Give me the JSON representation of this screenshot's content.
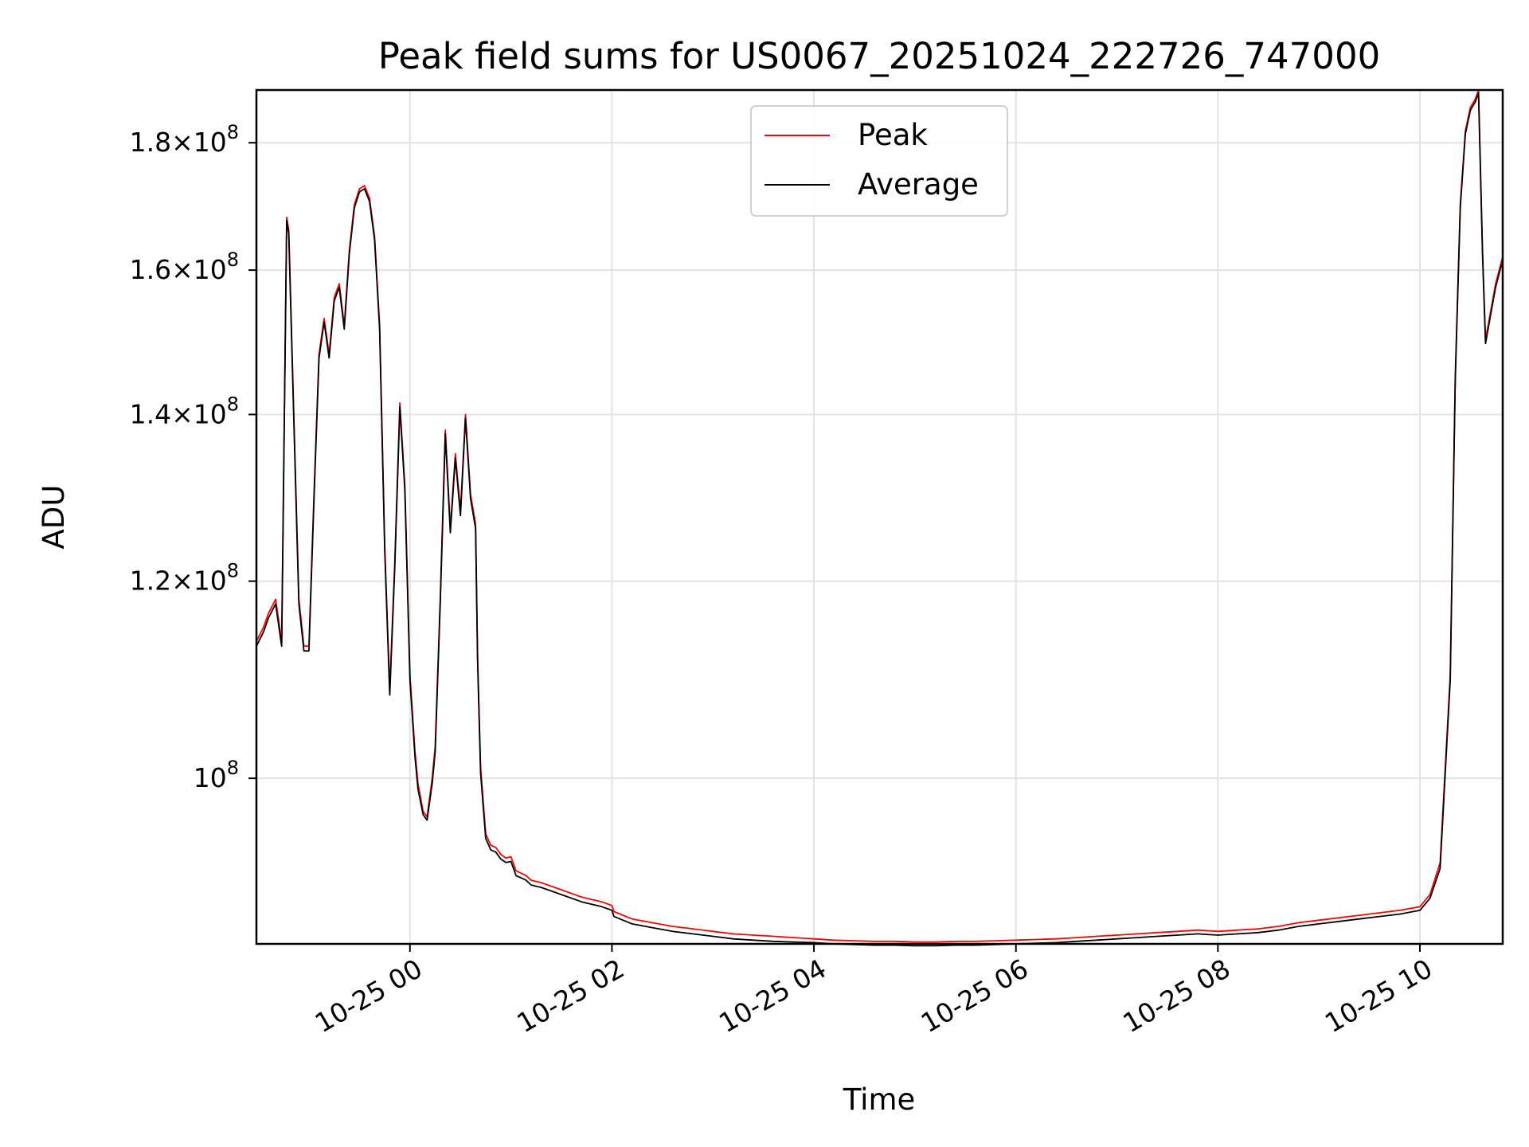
{
  "chart_data": {
    "type": "line",
    "title": "Peak field sums for US0067_20251024_222726_747000",
    "xlabel": "Time",
    "ylabel": "ADU",
    "y_scale": "log",
    "grid": true,
    "legend_position": "upper-center",
    "xlim_hours": [
      -1.52,
      10.82
    ],
    "ylim": [
      85800000.0,
      189000000.0
    ],
    "x_ticks": [
      {
        "hours": 0,
        "label": "10-25 00"
      },
      {
        "hours": 2,
        "label": "10-25 02"
      },
      {
        "hours": 4,
        "label": "10-25 04"
      },
      {
        "hours": 6,
        "label": "10-25 06"
      },
      {
        "hours": 8,
        "label": "10-25 08"
      },
      {
        "hours": 10,
        "label": "10-25 10"
      }
    ],
    "y_ticks": [
      {
        "value": 100000000,
        "mantissa": "",
        "exponent": "8"
      },
      {
        "value": 120000000,
        "mantissa": "1.2",
        "exponent": "8"
      },
      {
        "value": 140000000,
        "mantissa": "1.4",
        "exponent": "8"
      },
      {
        "value": 160000000,
        "mantissa": "1.6",
        "exponent": "8"
      },
      {
        "value": 180000000,
        "mantissa": "1.8",
        "exponent": "8"
      }
    ],
    "series": [
      {
        "name": "Peak",
        "color": "#ff0000",
        "hours": [
          -1.52,
          -1.45,
          -1.4,
          -1.33,
          -1.27,
          -1.22,
          -1.2,
          -1.15,
          -1.1,
          -1.05,
          -1.0,
          -0.95,
          -0.9,
          -0.85,
          -0.8,
          -0.75,
          -0.7,
          -0.65,
          -0.6,
          -0.55,
          -0.5,
          -0.45,
          -0.4,
          -0.35,
          -0.3,
          -0.25,
          -0.2,
          -0.15,
          -0.1,
          -0.05,
          0.0,
          0.05,
          0.08,
          0.13,
          0.17,
          0.22,
          0.25,
          0.3,
          0.35,
          0.4,
          0.45,
          0.5,
          0.55,
          0.6,
          0.65,
          0.67,
          0.7,
          0.75,
          0.8,
          0.85,
          0.9,
          0.95,
          1.0,
          1.03,
          1.05,
          1.1,
          1.15,
          1.2,
          1.3,
          1.5,
          1.7,
          1.9,
          2.0,
          2.02,
          2.2,
          2.4,
          2.6,
          2.8,
          3.0,
          3.2,
          3.4,
          3.6,
          3.8,
          4.0,
          4.2,
          4.4,
          4.6,
          4.8,
          5.0,
          5.2,
          5.4,
          5.6,
          5.8,
          6.0,
          6.2,
          6.4,
          6.6,
          6.8,
          7.0,
          7.2,
          7.4,
          7.6,
          7.8,
          8.0,
          8.2,
          8.4,
          8.6,
          8.8,
          9.0,
          9.2,
          9.4,
          9.6,
          9.8,
          10.0,
          10.1,
          10.2,
          10.3,
          10.35,
          10.4,
          10.45,
          10.5,
          10.55,
          10.58,
          10.62,
          10.65,
          10.7,
          10.75,
          10.82
        ],
        "values": [
          113.5,
          115.0,
          116.5,
          118.0,
          113.5,
          168.0,
          166.0,
          140.0,
          118.0,
          113.0,
          113.0,
          130.0,
          148.0,
          153.0,
          148.0,
          156.0,
          158.0,
          152.0,
          163.0,
          170.0,
          172.5,
          173.0,
          171.0,
          165.0,
          152.0,
          124.0,
          108.5,
          122.0,
          141.5,
          131.0,
          110.0,
          102.5,
          99.5,
          97.0,
          96.5,
          100.0,
          103.0,
          118.0,
          138.0,
          126.0,
          135.0,
          128.0,
          140.0,
          130.0,
          126.5,
          112.0,
          101.0,
          95.0,
          94.0,
          93.8,
          93.2,
          92.9,
          93.0,
          92.3,
          91.8,
          91.6,
          91.4,
          91.0,
          90.8,
          90.2,
          89.6,
          89.2,
          88.9,
          88.4,
          87.8,
          87.5,
          87.2,
          87.0,
          86.8,
          86.6,
          86.5,
          86.4,
          86.3,
          86.2,
          86.1,
          86.05,
          86.0,
          86.0,
          85.95,
          85.95,
          86.0,
          86.0,
          86.05,
          86.1,
          86.15,
          86.2,
          86.3,
          86.4,
          86.5,
          86.6,
          86.7,
          86.8,
          86.9,
          86.8,
          86.9,
          87.0,
          87.2,
          87.5,
          87.7,
          87.9,
          88.1,
          88.3,
          88.5,
          88.8,
          89.8,
          92.5,
          110.0,
          145.0,
          170.0,
          182.0,
          186.0,
          187.5,
          189.0,
          163.0,
          150.0,
          154.0,
          158.0,
          162.0
        ],
        "value_unit": "millions"
      },
      {
        "name": "Average",
        "color": "#000000",
        "hours": [
          -1.52,
          -1.45,
          -1.4,
          -1.33,
          -1.27,
          -1.22,
          -1.2,
          -1.15,
          -1.1,
          -1.05,
          -1.0,
          -0.95,
          -0.9,
          -0.85,
          -0.8,
          -0.75,
          -0.7,
          -0.65,
          -0.6,
          -0.55,
          -0.5,
          -0.45,
          -0.4,
          -0.35,
          -0.3,
          -0.25,
          -0.2,
          -0.15,
          -0.1,
          -0.05,
          0.0,
          0.05,
          0.08,
          0.13,
          0.17,
          0.22,
          0.25,
          0.3,
          0.35,
          0.4,
          0.45,
          0.5,
          0.55,
          0.6,
          0.65,
          0.67,
          0.7,
          0.75,
          0.8,
          0.85,
          0.9,
          0.95,
          1.0,
          1.03,
          1.05,
          1.1,
          1.15,
          1.2,
          1.3,
          1.5,
          1.7,
          1.9,
          2.0,
          2.02,
          2.2,
          2.4,
          2.6,
          2.8,
          3.0,
          3.2,
          3.4,
          3.6,
          3.8,
          4.0,
          4.2,
          4.4,
          4.6,
          4.8,
          5.0,
          5.2,
          5.4,
          5.6,
          5.8,
          6.0,
          6.2,
          6.4,
          6.6,
          6.8,
          7.0,
          7.2,
          7.4,
          7.6,
          7.8,
          8.0,
          8.2,
          8.4,
          8.6,
          8.8,
          9.0,
          9.2,
          9.4,
          9.6,
          9.8,
          10.0,
          10.1,
          10.2,
          10.3,
          10.35,
          10.4,
          10.45,
          10.5,
          10.55,
          10.58,
          10.62,
          10.65,
          10.7,
          10.75,
          10.82
        ],
        "values": [
          113.0,
          114.5,
          116.0,
          117.5,
          113.0,
          167.5,
          165.5,
          139.5,
          117.5,
          112.5,
          112.5,
          129.5,
          147.5,
          152.5,
          147.5,
          155.5,
          157.5,
          151.5,
          162.5,
          169.5,
          172.0,
          172.5,
          170.5,
          164.5,
          151.5,
          123.5,
          108.0,
          121.5,
          141.0,
          130.5,
          109.5,
          102.0,
          99.0,
          96.7,
          96.2,
          99.5,
          102.5,
          117.5,
          137.5,
          125.5,
          134.5,
          127.5,
          139.5,
          129.5,
          126.0,
          111.5,
          100.5,
          94.6,
          93.6,
          93.4,
          92.8,
          92.5,
          92.6,
          91.9,
          91.4,
          91.2,
          91.0,
          90.6,
          90.4,
          89.8,
          89.2,
          88.8,
          88.5,
          88.0,
          87.4,
          87.1,
          86.8,
          86.6,
          86.4,
          86.2,
          86.1,
          86.0,
          85.95,
          85.9,
          85.8,
          85.75,
          85.7,
          85.7,
          85.65,
          85.65,
          85.7,
          85.7,
          85.75,
          85.8,
          85.85,
          85.9,
          86.0,
          86.1,
          86.2,
          86.3,
          86.4,
          86.5,
          86.6,
          86.5,
          86.6,
          86.7,
          86.9,
          87.2,
          87.4,
          87.6,
          87.8,
          88.0,
          88.2,
          88.5,
          89.5,
          92.0,
          109.5,
          144.5,
          169.5,
          181.5,
          185.5,
          187.0,
          188.5,
          162.5,
          149.5,
          153.5,
          157.5,
          161.5
        ],
        "value_unit": "millions"
      }
    ]
  }
}
